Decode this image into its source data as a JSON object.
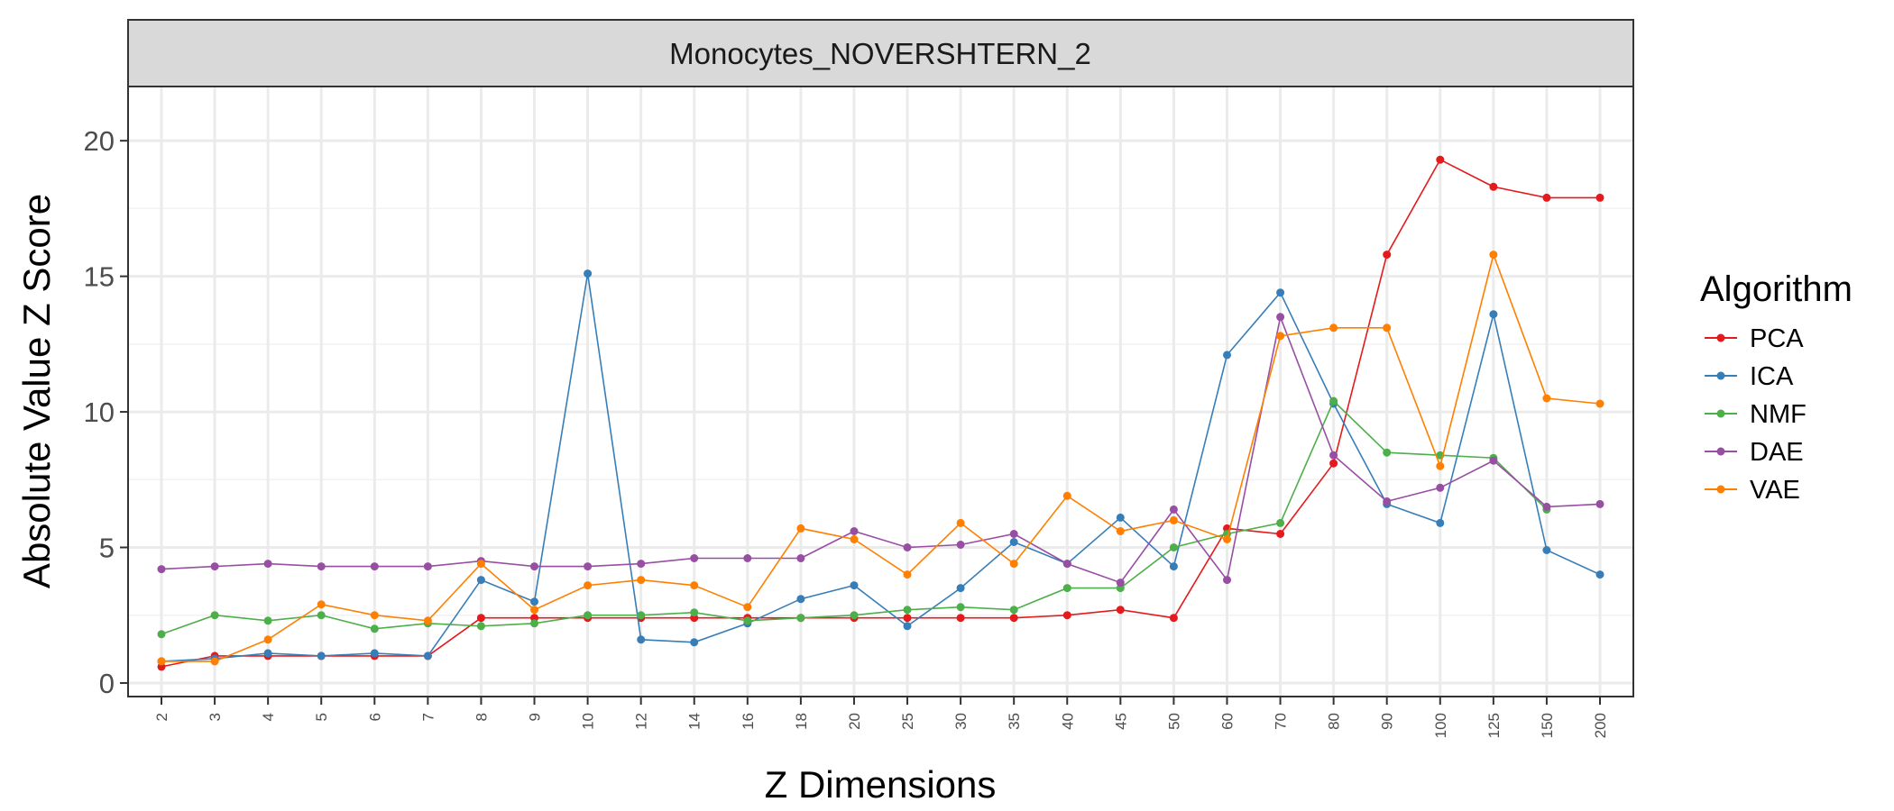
{
  "chart_data": {
    "type": "line",
    "facet_title": "Monocytes_NOVERSHTERN_2",
    "xlabel": "Z Dimensions",
    "ylabel": "Absolute Value Z Score",
    "categories": [
      "2",
      "3",
      "4",
      "5",
      "6",
      "7",
      "8",
      "9",
      "10",
      "12",
      "14",
      "16",
      "18",
      "20",
      "25",
      "30",
      "35",
      "40",
      "45",
      "50",
      "60",
      "70",
      "80",
      "90",
      "100",
      "125",
      "150",
      "200"
    ],
    "ylim": [
      -0.5,
      22
    ],
    "y_ticks": [
      0,
      5,
      10,
      15,
      20
    ],
    "grid": true,
    "legend": {
      "title": "Algorithm",
      "position": "right"
    },
    "series": [
      {
        "name": "PCA",
        "color": "#e41a1c",
        "values": [
          0.6,
          1.0,
          1.0,
          1.0,
          1.0,
          1.0,
          2.4,
          2.4,
          2.4,
          2.4,
          2.4,
          2.4,
          2.4,
          2.4,
          2.4,
          2.4,
          2.4,
          2.5,
          2.7,
          2.4,
          5.7,
          5.5,
          8.1,
          15.8,
          19.3,
          18.3,
          17.9,
          17.9
        ]
      },
      {
        "name": "ICA",
        "color": "#377eb8",
        "values": [
          0.8,
          0.9,
          1.1,
          1.0,
          1.1,
          1.0,
          3.8,
          3.0,
          15.1,
          1.6,
          1.5,
          2.2,
          3.1,
          3.6,
          2.1,
          3.5,
          5.2,
          4.4,
          6.1,
          4.3,
          12.1,
          14.4,
          10.3,
          6.6,
          5.9,
          13.6,
          4.9,
          4.0
        ]
      },
      {
        "name": "NMF",
        "color": "#4daf4a",
        "values": [
          1.8,
          2.5,
          2.3,
          2.5,
          2.0,
          2.2,
          2.1,
          2.2,
          2.5,
          2.5,
          2.6,
          2.3,
          2.4,
          2.5,
          2.7,
          2.8,
          2.7,
          3.5,
          3.5,
          5.0,
          5.5,
          5.9,
          10.4,
          8.5,
          8.4,
          8.3,
          6.4,
          null
        ]
      },
      {
        "name": "DAE",
        "color": "#984ea3",
        "values": [
          4.2,
          4.3,
          4.4,
          4.3,
          4.3,
          4.3,
          4.5,
          4.3,
          4.3,
          4.4,
          4.6,
          4.6,
          4.6,
          5.6,
          5.0,
          5.1,
          5.5,
          4.4,
          3.7,
          6.4,
          3.8,
          13.5,
          8.4,
          6.7,
          7.2,
          8.2,
          6.5,
          6.6
        ]
      },
      {
        "name": "VAE",
        "color": "#ff7f00",
        "values": [
          0.8,
          0.8,
          1.6,
          2.9,
          2.5,
          2.3,
          4.4,
          2.7,
          3.6,
          3.8,
          3.6,
          2.8,
          5.7,
          5.3,
          4.0,
          5.9,
          4.4,
          6.9,
          5.6,
          6.0,
          5.3,
          12.8,
          13.1,
          13.1,
          8.0,
          15.8,
          10.5,
          10.3
        ]
      }
    ]
  }
}
